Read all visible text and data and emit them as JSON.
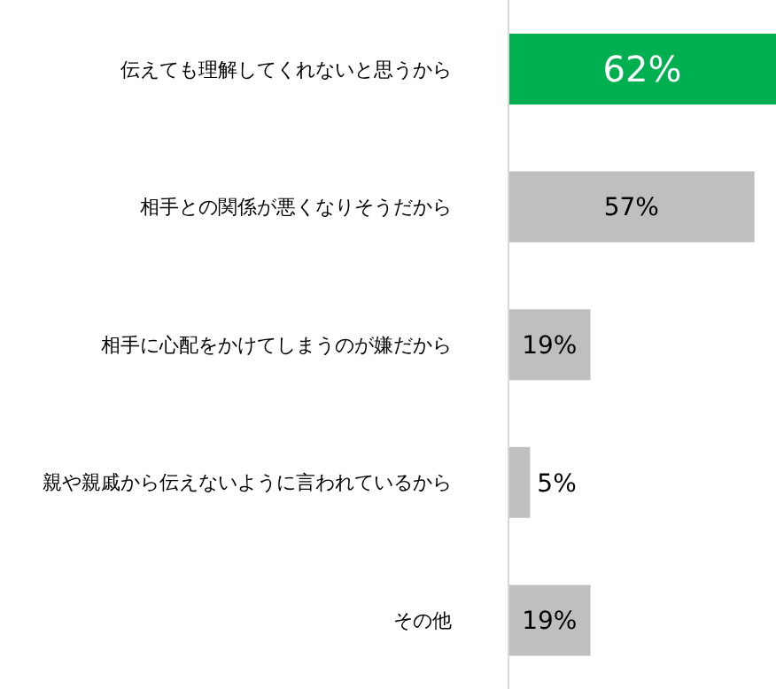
{
  "chart_data": {
    "type": "bar",
    "orientation": "horizontal",
    "categories": [
      "伝えても理解してくれないと思うから",
      "相手との関係が悪くなりそうだから",
      "相手に心配をかけてしまうのが嫌だから",
      "親や親戚から伝えないように言われているから",
      "その他"
    ],
    "values": [
      62,
      57,
      19,
      5,
      19
    ],
    "colors": [
      "#00b050",
      "#bfbfbf",
      "#bfbfbf",
      "#bfbfbf",
      "#bfbfbf"
    ],
    "value_labels": [
      "62%",
      "57%",
      "19%",
      "5%",
      "19%"
    ],
    "grid": false,
    "legend": false
  }
}
